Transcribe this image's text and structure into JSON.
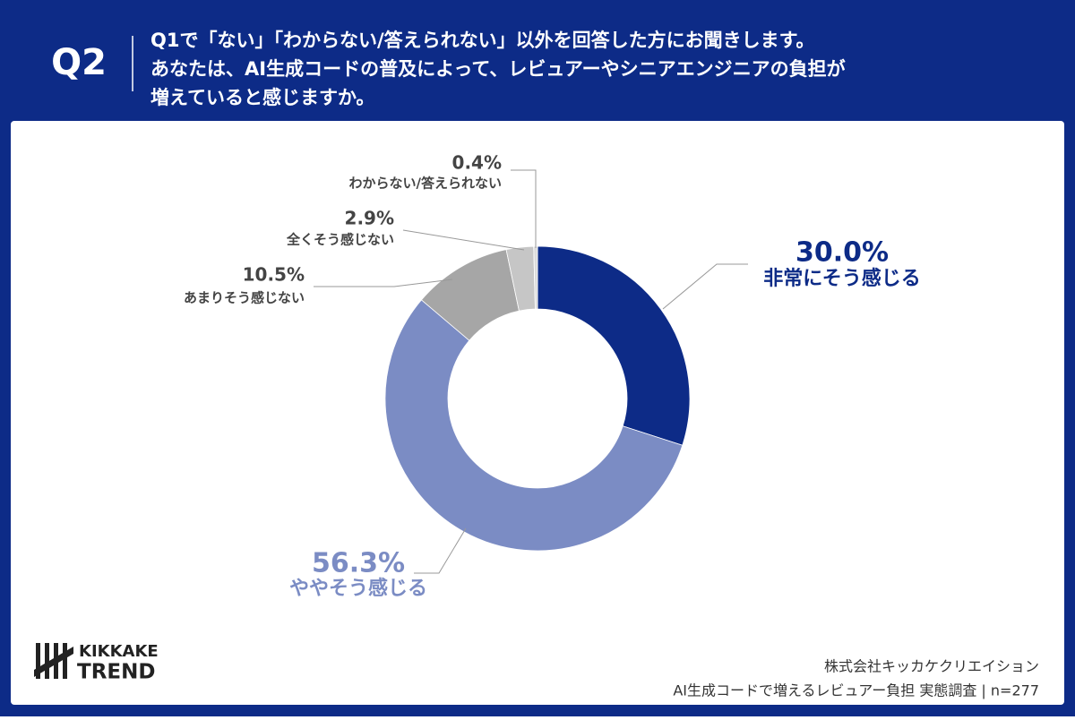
{
  "header": {
    "label": "Q2",
    "question": [
      "Q1で「ない」「わからない/答えられない」以外を回答した方にお聞きします。",
      "あなたは、AI生成コードの普及によって、レビュアーやシニアエンジニアの負担が",
      "増えていると感じますか。"
    ]
  },
  "chart_data": {
    "type": "donut",
    "categories": [
      "非常にそう感じる",
      "ややそう感じる",
      "あまりそう感じない",
      "全くそう感じない",
      "わからない/答えられない"
    ],
    "values": [
      30.0,
      56.3,
      10.5,
      2.9,
      0.4
    ],
    "value_labels": [
      "30.0%",
      "56.3%",
      "10.5%",
      "2.9%",
      "0.4%"
    ],
    "colors": [
      "#0d2b87",
      "#7b8cc4",
      "#a6a6a6",
      "#c6c6c6",
      "#dcdcdc"
    ],
    "label_colors": [
      "#0d2b87",
      "#7b8cc4",
      "#444444",
      "#444444",
      "#444444"
    ]
  },
  "footer": {
    "logo": [
      "KIKKAKE",
      "TREND"
    ],
    "source": [
      "株式会社キッカケクリエイション",
      "AI生成コードで増えるレビュアー負担 実態調査 | n=277"
    ]
  }
}
